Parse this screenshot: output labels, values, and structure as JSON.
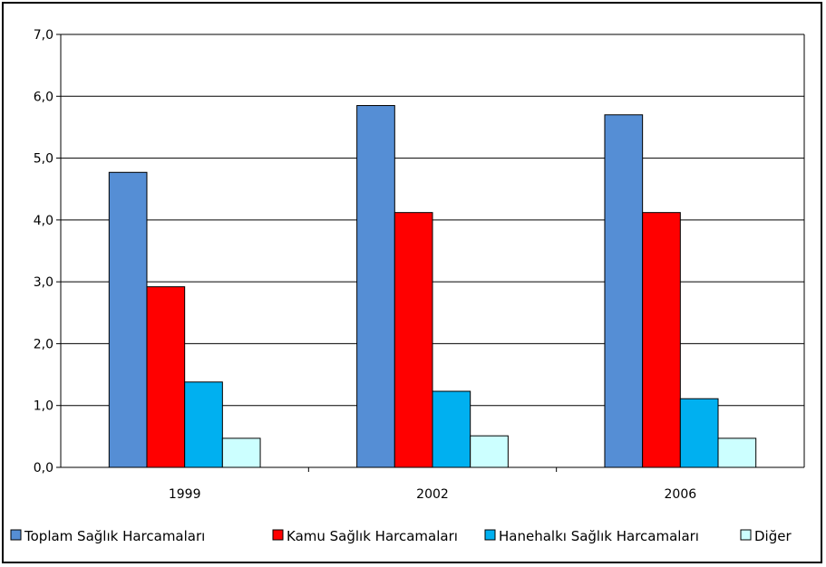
{
  "chart_data": {
    "type": "bar",
    "categories": [
      "1999",
      "2002",
      "2006"
    ],
    "series": [
      {
        "name": "Toplam Sağlık Harcamaları",
        "values": [
          4.77,
          5.85,
          5.7
        ],
        "color": "#558ed5"
      },
      {
        "name": "Kamu Sağlık Harcamaları",
        "values": [
          2.92,
          4.12,
          4.12
        ],
        "color": "#ff0000"
      },
      {
        "name": "Hanehalkı Sağlık Harcamaları",
        "values": [
          1.38,
          1.23,
          1.11
        ],
        "color": "#00b0f0"
      },
      {
        "name": "Diğer",
        "values": [
          0.47,
          0.51,
          0.47
        ],
        "color": "#ccffff"
      }
    ],
    "title": "",
    "xlabel": "",
    "ylabel": "",
    "ylim": [
      0,
      7
    ],
    "yticks": [
      "0,0",
      "1,0",
      "2,0",
      "3,0",
      "4,0",
      "5,0",
      "6,0",
      "7,0"
    ],
    "grid": true,
    "legend": "bottom"
  }
}
